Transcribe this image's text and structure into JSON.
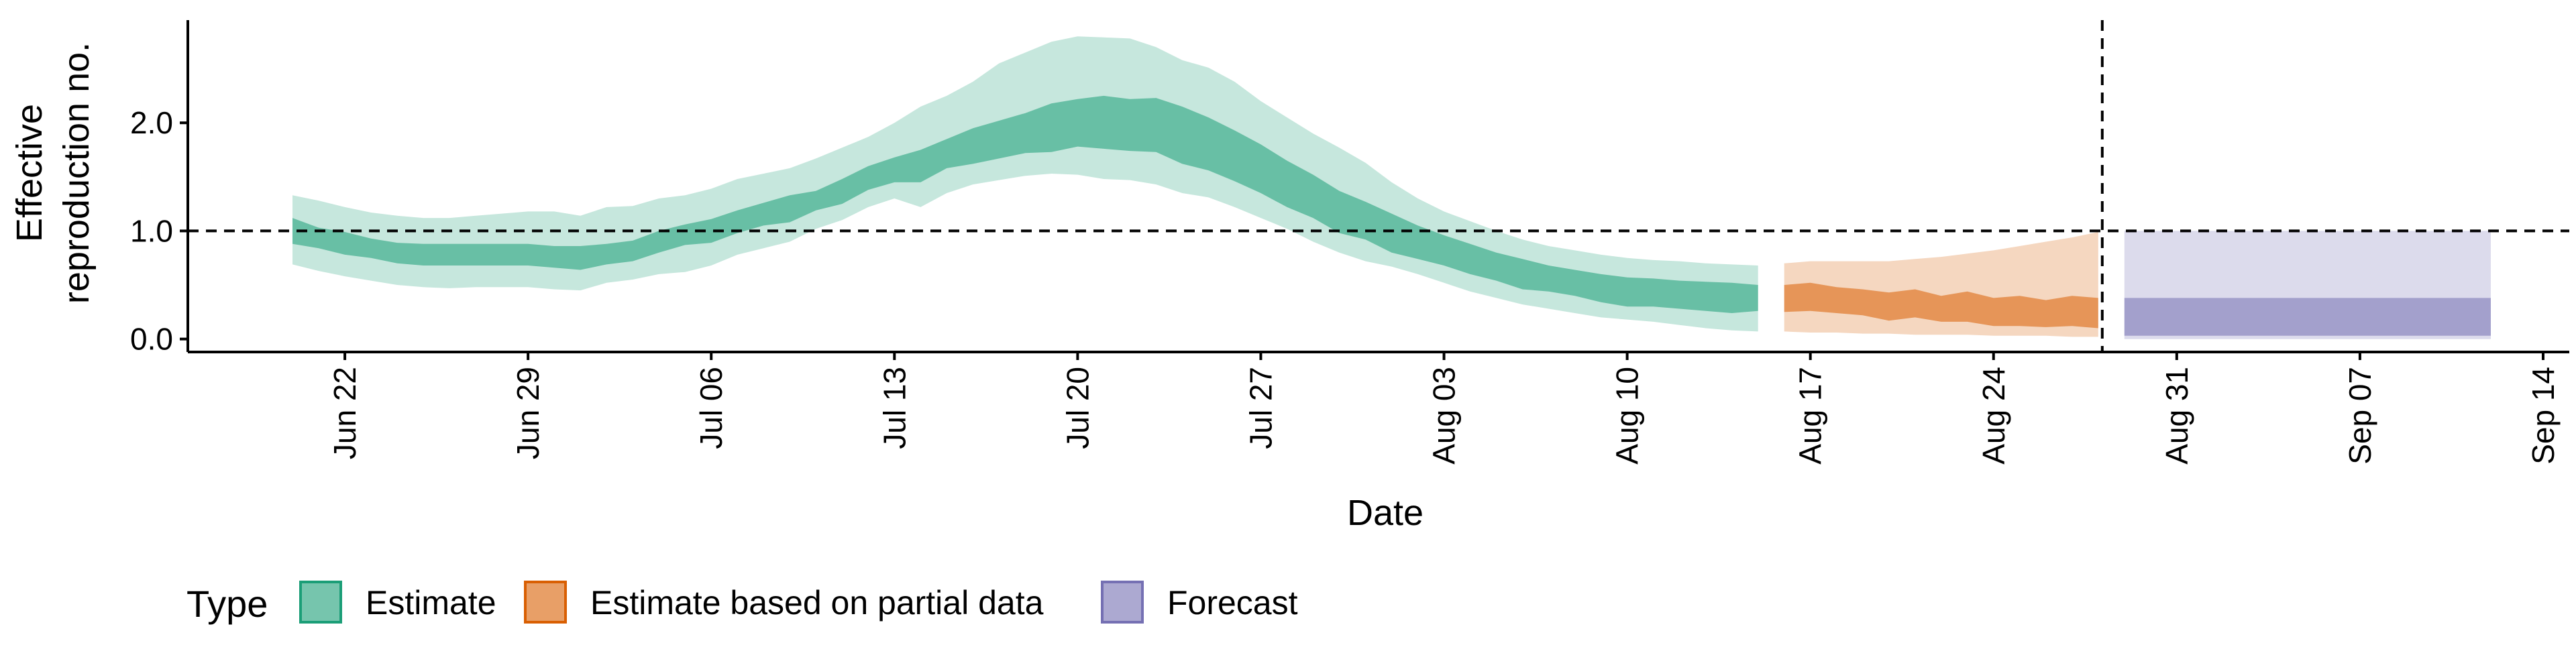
{
  "chart_data": {
    "type": "area",
    "xlabel": "Date",
    "ylabel_lines": [
      "Effective",
      "reproduction no."
    ],
    "x_ticks": [
      "Jun 22",
      "Jun 29",
      "Jul 06",
      "Jul 13",
      "Jul 20",
      "Jul 27",
      "Aug 03",
      "Aug 10",
      "Aug 17",
      "Aug 24",
      "Aug 31",
      "Sep 07",
      "Sep 14"
    ],
    "x_range": [
      "2020-06-16",
      "2020-09-15"
    ],
    "y_ticks": [
      "0.0",
      "1.0",
      "2.0"
    ],
    "ylim": [
      -0.12,
      2.95
    ],
    "reference_line_y": 1.0,
    "reference_line_x": "2020-08-28",
    "legend": {
      "title": "Type",
      "position": "bottom-left",
      "entries": [
        {
          "label": "Estimate",
          "color": "#1b9e77"
        },
        {
          "label": "Estimate based on partial data",
          "color": "#d95f02"
        },
        {
          "label": "Forecast",
          "color": "#7570b3"
        }
      ]
    },
    "series": [
      {
        "name": "Estimate",
        "color": "#1b9e77",
        "dates": [
          "2020-06-20",
          "2020-06-21",
          "2020-06-22",
          "2020-06-23",
          "2020-06-24",
          "2020-06-25",
          "2020-06-26",
          "2020-06-27",
          "2020-06-28",
          "2020-06-29",
          "2020-06-30",
          "2020-07-01",
          "2020-07-02",
          "2020-07-03",
          "2020-07-04",
          "2020-07-05",
          "2020-07-06",
          "2020-07-07",
          "2020-07-08",
          "2020-07-09",
          "2020-07-10",
          "2020-07-11",
          "2020-07-12",
          "2020-07-13",
          "2020-07-14",
          "2020-07-15",
          "2020-07-16",
          "2020-07-17",
          "2020-07-18",
          "2020-07-19",
          "2020-07-20",
          "2020-07-21",
          "2020-07-22",
          "2020-07-23",
          "2020-07-24",
          "2020-07-25",
          "2020-07-26",
          "2020-07-27",
          "2020-07-28",
          "2020-07-29",
          "2020-07-30",
          "2020-07-31",
          "2020-08-01",
          "2020-08-02",
          "2020-08-03",
          "2020-08-04",
          "2020-08-05",
          "2020-08-06",
          "2020-08-07",
          "2020-08-08",
          "2020-08-09",
          "2020-08-10",
          "2020-08-11",
          "2020-08-12",
          "2020-08-13",
          "2020-08-14",
          "2020-08-15"
        ],
        "lower_90": [
          0.69,
          0.63,
          0.58,
          0.54,
          0.5,
          0.48,
          0.47,
          0.48,
          0.48,
          0.48,
          0.46,
          0.45,
          0.52,
          0.55,
          0.6,
          0.62,
          0.68,
          0.78,
          0.84,
          0.9,
          1.02,
          1.1,
          1.22,
          1.3,
          1.22,
          1.35,
          1.43,
          1.47,
          1.51,
          1.53,
          1.52,
          1.48,
          1.47,
          1.43,
          1.35,
          1.31,
          1.22,
          1.12,
          1.02,
          0.9,
          0.8,
          0.72,
          0.67,
          0.6,
          0.52,
          0.44,
          0.38,
          0.32,
          0.28,
          0.24,
          0.2,
          0.18,
          0.16,
          0.13,
          0.1,
          0.08,
          0.07
        ],
        "upper_90": [
          1.33,
          1.28,
          1.22,
          1.17,
          1.14,
          1.12,
          1.12,
          1.14,
          1.16,
          1.18,
          1.18,
          1.14,
          1.22,
          1.23,
          1.3,
          1.33,
          1.39,
          1.48,
          1.53,
          1.58,
          1.67,
          1.77,
          1.87,
          2.0,
          2.15,
          2.25,
          2.38,
          2.55,
          2.65,
          2.75,
          2.8,
          2.79,
          2.78,
          2.7,
          2.58,
          2.51,
          2.38,
          2.2,
          2.05,
          1.9,
          1.77,
          1.63,
          1.45,
          1.3,
          1.18,
          1.09,
          1.0,
          0.92,
          0.86,
          0.82,
          0.78,
          0.75,
          0.73,
          0.72,
          0.7,
          0.69,
          0.68
        ],
        "lower_50": [
          0.88,
          0.84,
          0.78,
          0.75,
          0.7,
          0.68,
          0.68,
          0.68,
          0.68,
          0.68,
          0.66,
          0.64,
          0.69,
          0.72,
          0.8,
          0.87,
          0.89,
          0.98,
          1.05,
          1.08,
          1.19,
          1.25,
          1.38,
          1.45,
          1.45,
          1.58,
          1.62,
          1.67,
          1.72,
          1.73,
          1.78,
          1.76,
          1.74,
          1.73,
          1.62,
          1.56,
          1.46,
          1.35,
          1.22,
          1.12,
          0.98,
          0.92,
          0.8,
          0.74,
          0.68,
          0.6,
          0.54,
          0.46,
          0.44,
          0.4,
          0.34,
          0.3,
          0.3,
          0.28,
          0.26,
          0.24,
          0.26
        ],
        "upper_50": [
          1.12,
          1.03,
          0.99,
          0.93,
          0.89,
          0.88,
          0.88,
          0.88,
          0.88,
          0.88,
          0.86,
          0.86,
          0.88,
          0.91,
          1.0,
          1.06,
          1.11,
          1.19,
          1.26,
          1.33,
          1.37,
          1.48,
          1.6,
          1.68,
          1.75,
          1.85,
          1.95,
          2.02,
          2.09,
          2.18,
          2.22,
          2.25,
          2.22,
          2.23,
          2.15,
          2.05,
          1.93,
          1.8,
          1.65,
          1.52,
          1.37,
          1.27,
          1.16,
          1.05,
          0.96,
          0.88,
          0.8,
          0.74,
          0.68,
          0.64,
          0.6,
          0.57,
          0.56,
          0.54,
          0.53,
          0.52,
          0.5
        ]
      },
      {
        "name": "Estimate based on partial data",
        "color": "#d95f02",
        "dates": [
          "2020-08-16",
          "2020-08-17",
          "2020-08-18",
          "2020-08-19",
          "2020-08-20",
          "2020-08-21",
          "2020-08-22",
          "2020-08-23",
          "2020-08-24",
          "2020-08-25",
          "2020-08-26",
          "2020-08-27",
          "2020-08-28"
        ],
        "lower_90": [
          0.07,
          0.06,
          0.06,
          0.05,
          0.05,
          0.04,
          0.04,
          0.04,
          0.03,
          0.03,
          0.03,
          0.02,
          0.02
        ],
        "upper_90": [
          0.7,
          0.72,
          0.72,
          0.72,
          0.72,
          0.74,
          0.76,
          0.79,
          0.82,
          0.86,
          0.9,
          0.94,
          0.99
        ],
        "lower_50": [
          0.25,
          0.26,
          0.24,
          0.22,
          0.17,
          0.2,
          0.16,
          0.16,
          0.12,
          0.12,
          0.11,
          0.12,
          0.1
        ],
        "upper_50": [
          0.5,
          0.52,
          0.48,
          0.46,
          0.43,
          0.46,
          0.4,
          0.44,
          0.38,
          0.4,
          0.36,
          0.4,
          0.38
        ]
      },
      {
        "name": "Forecast",
        "color": "#7570b3",
        "dates": [
          "2020-08-29",
          "2020-09-11"
        ],
        "lower_90": [
          0.0,
          0.0
        ],
        "upper_90": [
          1.0,
          1.0
        ],
        "lower_50": [
          0.03,
          0.03
        ],
        "upper_50": [
          0.38,
          0.38
        ]
      }
    ]
  }
}
